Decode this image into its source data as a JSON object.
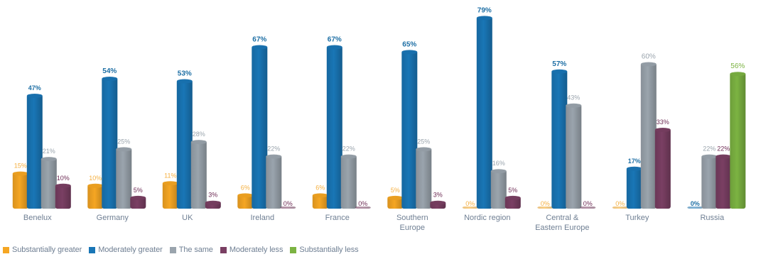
{
  "chart_data": {
    "type": "bar",
    "title": "",
    "xlabel": "",
    "ylabel": "",
    "ylim": [
      0,
      80
    ],
    "grid": false,
    "legend_position": "bottom-left",
    "categories": [
      "Benelux",
      "Germany",
      "UK",
      "Ireland",
      "France",
      "Southern Europe",
      "Nordic region",
      "Central & Eastern Europe",
      "Turkey",
      "Russia"
    ],
    "series": [
      {
        "name": "Substantially greater",
        "color": "#f5a623",
        "values": [
          15,
          10,
          11,
          6,
          6,
          5,
          0,
          0,
          0,
          0
        ]
      },
      {
        "name": "Moderately greater",
        "color": "#1976b6",
        "values": [
          47,
          54,
          53,
          67,
          67,
          65,
          79,
          57,
          17,
          0
        ]
      },
      {
        "name": "The same",
        "color": "#9aa4ad",
        "values": [
          21,
          25,
          28,
          22,
          22,
          25,
          16,
          43,
          60,
          22
        ]
      },
      {
        "name": "Moderately less",
        "color": "#7a3f63",
        "values": [
          10,
          5,
          3,
          0,
          0,
          3,
          5,
          0,
          33,
          22
        ]
      },
      {
        "name": "Substantially less",
        "color": "#7cb342",
        "values": [
          0,
          0,
          0,
          0,
          0,
          0,
          0,
          0,
          0,
          56
        ]
      }
    ]
  }
}
